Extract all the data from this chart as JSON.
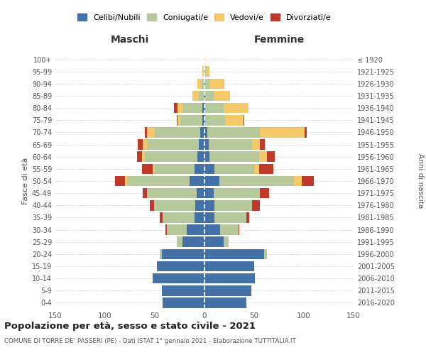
{
  "age_groups": [
    "0-4",
    "5-9",
    "10-14",
    "15-19",
    "20-24",
    "25-29",
    "30-34",
    "35-39",
    "40-44",
    "45-49",
    "50-54",
    "55-59",
    "60-64",
    "65-69",
    "70-74",
    "75-79",
    "80-84",
    "85-89",
    "90-94",
    "95-99",
    "100+"
  ],
  "birth_years": [
    "2016-2020",
    "2011-2015",
    "2006-2010",
    "2001-2005",
    "1996-2000",
    "1991-1995",
    "1986-1990",
    "1981-1985",
    "1976-1980",
    "1971-1975",
    "1966-1970",
    "1961-1965",
    "1956-1960",
    "1951-1955",
    "1946-1950",
    "1941-1945",
    "1936-1940",
    "1931-1935",
    "1926-1930",
    "1921-1925",
    "≤ 1920"
  ],
  "males": {
    "celibe": [
      42,
      43,
      52,
      48,
      43,
      22,
      18,
      10,
      9,
      8,
      15,
      10,
      7,
      6,
      4,
      2,
      2,
      1,
      0,
      0,
      0
    ],
    "coniugato": [
      0,
      0,
      0,
      0,
      2,
      6,
      20,
      32,
      42,
      50,
      63,
      40,
      53,
      52,
      46,
      22,
      20,
      5,
      3,
      1,
      0
    ],
    "vedovo": [
      0,
      0,
      0,
      0,
      0,
      0,
      0,
      0,
      0,
      0,
      2,
      2,
      3,
      4,
      8,
      3,
      5,
      6,
      4,
      1,
      0
    ],
    "divorziato": [
      0,
      0,
      0,
      0,
      0,
      0,
      1,
      3,
      4,
      4,
      10,
      11,
      5,
      5,
      2,
      1,
      4,
      0,
      0,
      0,
      0
    ]
  },
  "females": {
    "nubile": [
      42,
      47,
      51,
      50,
      60,
      19,
      16,
      10,
      10,
      9,
      15,
      10,
      5,
      4,
      3,
      1,
      1,
      1,
      1,
      0,
      0
    ],
    "coniugata": [
      0,
      0,
      0,
      0,
      3,
      5,
      18,
      32,
      38,
      47,
      75,
      40,
      50,
      44,
      53,
      20,
      18,
      8,
      5,
      2,
      0
    ],
    "vedova": [
      0,
      0,
      0,
      0,
      0,
      0,
      0,
      0,
      0,
      0,
      8,
      5,
      8,
      8,
      45,
      18,
      25,
      17,
      14,
      3,
      1
    ],
    "divorziata": [
      0,
      0,
      0,
      0,
      0,
      0,
      1,
      3,
      8,
      9,
      12,
      14,
      8,
      5,
      2,
      1,
      0,
      0,
      0,
      0,
      0
    ]
  },
  "colors": {
    "celibe": "#4472a8",
    "coniugato": "#b5c99a",
    "vedovo": "#f5c96a",
    "divorziato": "#c0392b"
  },
  "legend_labels": [
    "Celibi/Nubili",
    "Coniugati/e",
    "Vedovi/e",
    "Divorziati/e"
  ],
  "title": "Popolazione per età, sesso e stato civile - 2021",
  "subtitle": "COMUNE DI TORRE DE' PASSERI (PE) - Dati ISTAT 1° gennaio 2021 - Elaborazione TUTTITALIA.IT",
  "xlabel_left": "Maschi",
  "xlabel_right": "Femmine",
  "ylabel_left": "Fasce di età",
  "ylabel_right": "Anni di nascita",
  "xlim": 150,
  "background_color": "#ffffff",
  "grid_color": "#cccccc",
  "bar_height": 0.85
}
